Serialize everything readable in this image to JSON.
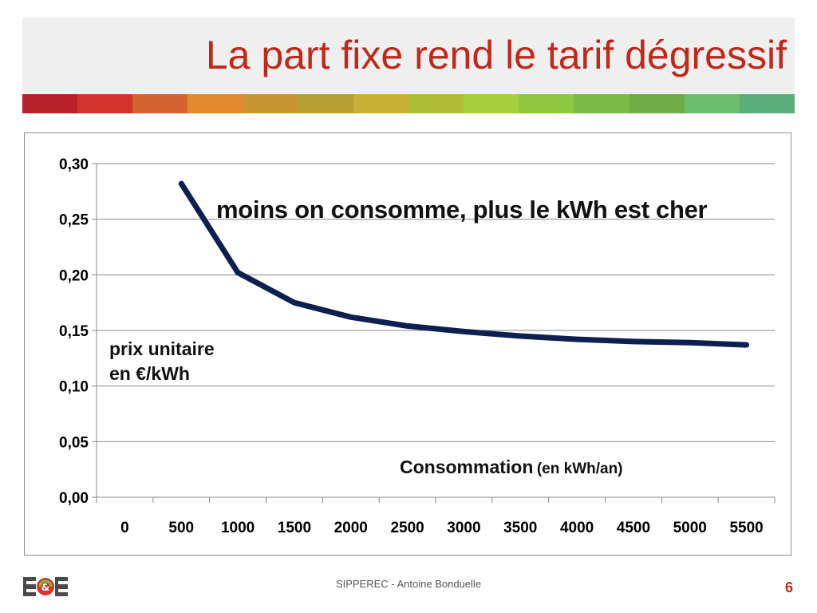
{
  "slide": {
    "title": "La part fixe rend le tarif dégressif",
    "footer": "SIPPEREC - Antoine Bonduelle",
    "page_number": "6",
    "logo": "E&E logo",
    "title_color": "#c0281c",
    "strip_colors": [
      "#b92029",
      "#d2342a",
      "#d4632e",
      "#e28a2d",
      "#c99531",
      "#b8a030",
      "#c9b034",
      "#aebd38",
      "#a6cf3c",
      "#8ec83f",
      "#79bb45",
      "#6eac45",
      "#6abd6b",
      "#5aae79"
    ]
  },
  "chart_data": {
    "type": "line",
    "x": [
      500,
      1000,
      1500,
      2000,
      2500,
      3000,
      3500,
      4000,
      4500,
      5000,
      5500
    ],
    "series": [
      {
        "values": [
          0.282,
          0.202,
          0.175,
          0.162,
          0.154,
          0.149,
          0.145,
          0.142,
          0.14,
          0.139,
          0.137
        ],
        "color": "#0d1f4f"
      }
    ],
    "x_tick_labels": [
      "0",
      "500",
      "1000",
      "1500",
      "2000",
      "2500",
      "3000",
      "3500",
      "4000",
      "4500",
      "5000",
      "5500"
    ],
    "y_ticks": [
      0,
      0.05,
      0.1,
      0.15,
      0.2,
      0.25,
      0.3
    ],
    "y_tick_labels": [
      "0,00",
      "0,05",
      "0,10",
      "0,15",
      "0,20",
      "0,25",
      "0,30"
    ],
    "ylim": [
      0,
      0.3
    ],
    "grid": "horizontal",
    "annotations": {
      "main": "moins on consomme, plus le kWh est cher",
      "ylabel": "prix unitaire en €/kWh",
      "xlabel": "Consommation",
      "xlabel_unit": "(en kWh/an)"
    }
  }
}
